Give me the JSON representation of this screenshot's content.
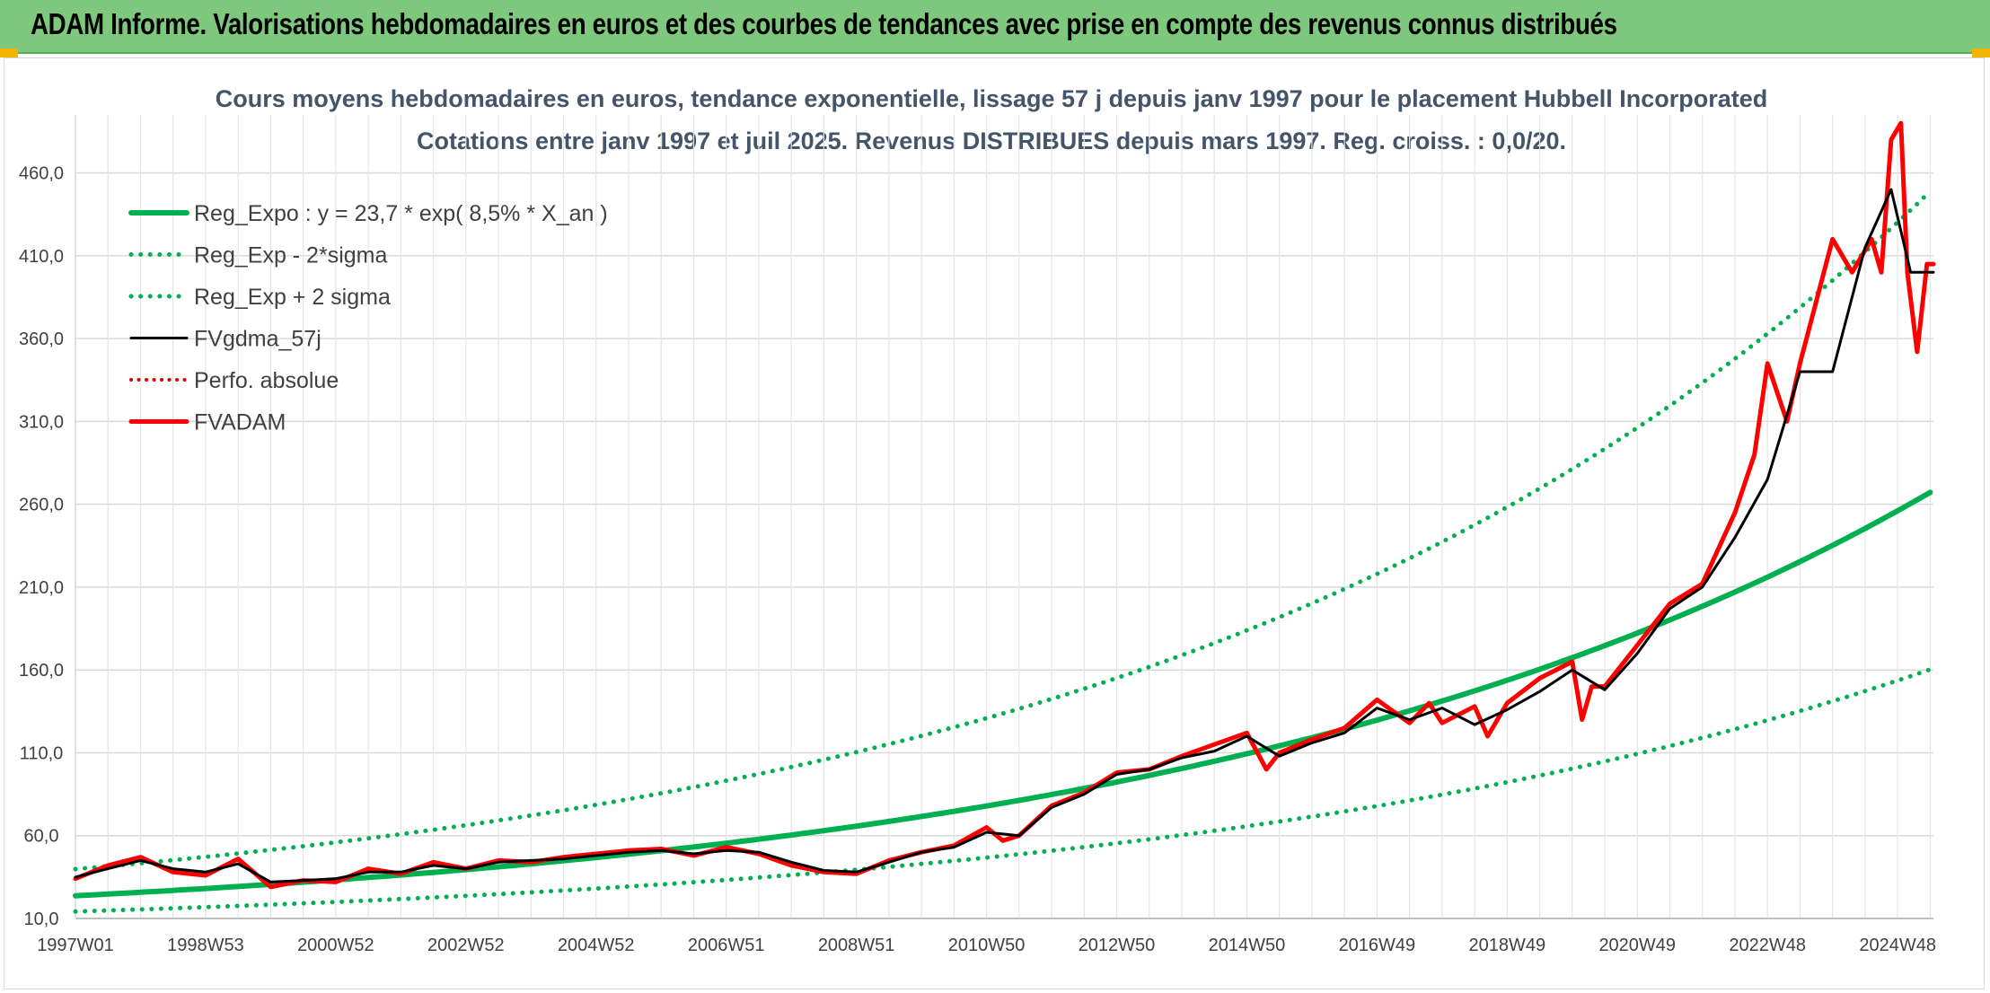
{
  "banner": {
    "title": "ADAM Informe. Valorisations hebdomadaires en euros et des courbes de tendances avec prise en compte des revenus connus distribués"
  },
  "chart_data": {
    "type": "line",
    "title": "Cours moyens hebdomadaires en euros, tendance exponentielle, lissage 57 j depuis janv 1997 pour le placement Hubbell Incorporated",
    "subtitle": "Cotations entre janv 1997 et juil 2025. Revenus DISTRIBUES depuis mars 1997. Reg. croiss. : 0,0/20.",
    "xlabel": "",
    "ylabel": "",
    "x_range": [
      1997.0,
      2025.55
    ],
    "ylim": [
      10,
      495
    ],
    "y_ticks": [
      10,
      60,
      110,
      160,
      210,
      260,
      310,
      360,
      410,
      460
    ],
    "y_tick_labels": [
      "10,0",
      "60,0",
      "110,0",
      "160,0",
      "210,0",
      "260,0",
      "310,0",
      "360,0",
      "410,0",
      "460,0"
    ],
    "x_ticks": [
      1997.0,
      1999.0,
      2001.0,
      2003.0,
      2005.0,
      2007.0,
      2009.0,
      2011.0,
      2013.0,
      2015.0,
      2017.0,
      2019.0,
      2021.0,
      2023.0,
      2025.0
    ],
    "x_tick_labels": [
      "1997W01",
      "1998W53",
      "2000W52",
      "2002W52",
      "2004W52",
      "2006W51",
      "2008W51",
      "2010W50",
      "2012W50",
      "2014W50",
      "2016W49",
      "2018W49",
      "2020W49",
      "2022W48",
      "2024W48"
    ],
    "grid": true,
    "legend_position": "top-left",
    "regression": {
      "a": 23.7,
      "rate": 0.085,
      "sigma_factor_low": 0.6,
      "sigma_factor_high": 1.68
    },
    "series": [
      {
        "name": "Reg_Expo : y = 23,7 * exp( 8,5% *  X_an )",
        "color": "#00b050",
        "style": "solid",
        "width": 6
      },
      {
        "name": "Reg_Exp - 2*sigma",
        "color": "#00b050",
        "style": "dotted",
        "width": 5
      },
      {
        "name": "Reg_Exp + 2 sigma",
        "color": "#00b050",
        "style": "dotted",
        "width": 5
      },
      {
        "name": "FVgdma_57j",
        "color": "#000000",
        "style": "solid",
        "width": 3,
        "x": [
          1997.0,
          1997.5,
          1998.0,
          1998.5,
          1999.0,
          1999.5,
          2000.0,
          2000.5,
          2001.0,
          2001.5,
          2002.0,
          2002.5,
          2003.0,
          2003.5,
          2004.0,
          2004.5,
          2005.0,
          2005.5,
          2006.0,
          2006.5,
          2007.0,
          2007.5,
          2008.0,
          2008.5,
          2009.0,
          2009.5,
          2010.0,
          2010.5,
          2011.0,
          2011.5,
          2012.0,
          2012.5,
          2013.0,
          2013.5,
          2014.0,
          2014.5,
          2015.0,
          2015.5,
          2016.0,
          2016.5,
          2017.0,
          2017.5,
          2018.0,
          2018.5,
          2019.0,
          2019.5,
          2020.0,
          2020.5,
          2021.0,
          2021.5,
          2022.0,
          2022.5,
          2023.0,
          2023.5,
          2024.0,
          2024.5,
          2024.9,
          2025.2,
          2025.55
        ],
        "values": [
          35,
          40,
          45,
          40,
          38,
          43,
          32,
          33,
          34,
          38,
          38,
          42,
          40,
          44,
          45,
          46,
          48,
          50,
          51,
          49,
          51,
          50,
          44,
          39,
          38,
          44,
          50,
          53,
          62,
          60,
          77,
          85,
          97,
          100,
          107,
          111,
          120,
          108,
          116,
          122,
          137,
          130,
          137,
          127,
          136,
          147,
          160,
          148,
          170,
          197,
          210,
          240,
          275,
          340,
          340,
          415,
          450,
          400,
          400
        ]
      },
      {
        "name": "Perfo. absolue",
        "color": "#e00000",
        "style": "dotted",
        "width": 4
      },
      {
        "name": "FVADAM",
        "color": "#ff0000",
        "style": "solid",
        "width": 5,
        "x": [
          1997.0,
          1997.5,
          1998.0,
          1998.5,
          1999.0,
          1999.5,
          2000.0,
          2000.5,
          2001.0,
          2001.5,
          2002.0,
          2002.5,
          2003.0,
          2003.5,
          2004.0,
          2004.5,
          2005.0,
          2005.5,
          2006.0,
          2006.5,
          2007.0,
          2007.5,
          2008.0,
          2008.5,
          2009.0,
          2009.5,
          2010.0,
          2010.5,
          2011.0,
          2011.25,
          2011.5,
          2012.0,
          2012.5,
          2013.0,
          2013.5,
          2014.0,
          2014.5,
          2015.0,
          2015.3,
          2015.5,
          2016.0,
          2016.5,
          2017.0,
          2017.5,
          2017.8,
          2018.0,
          2018.5,
          2018.7,
          2019.0,
          2019.5,
          2020.0,
          2020.15,
          2020.3,
          2020.5,
          2021.0,
          2021.5,
          2022.0,
          2022.5,
          2022.8,
          2023.0,
          2023.3,
          2023.5,
          2024.0,
          2024.3,
          2024.6,
          2024.75,
          2024.9,
          2025.05,
          2025.15,
          2025.3,
          2025.45,
          2025.55
        ],
        "values": [
          34,
          42,
          47,
          38,
          36,
          46,
          29,
          33,
          32,
          40,
          37,
          44,
          40,
          45,
          44,
          47,
          49,
          51,
          52,
          48,
          53,
          49,
          42,
          38,
          37,
          45,
          50,
          54,
          65,
          57,
          60,
          78,
          86,
          98,
          100,
          108,
          115,
          122,
          100,
          110,
          118,
          125,
          142,
          128,
          140,
          128,
          138,
          120,
          140,
          155,
          165,
          130,
          150,
          150,
          175,
          200,
          212,
          255,
          290,
          345,
          310,
          345,
          420,
          400,
          420,
          400,
          480,
          490,
          400,
          352,
          405,
          405
        ]
      }
    ]
  }
}
